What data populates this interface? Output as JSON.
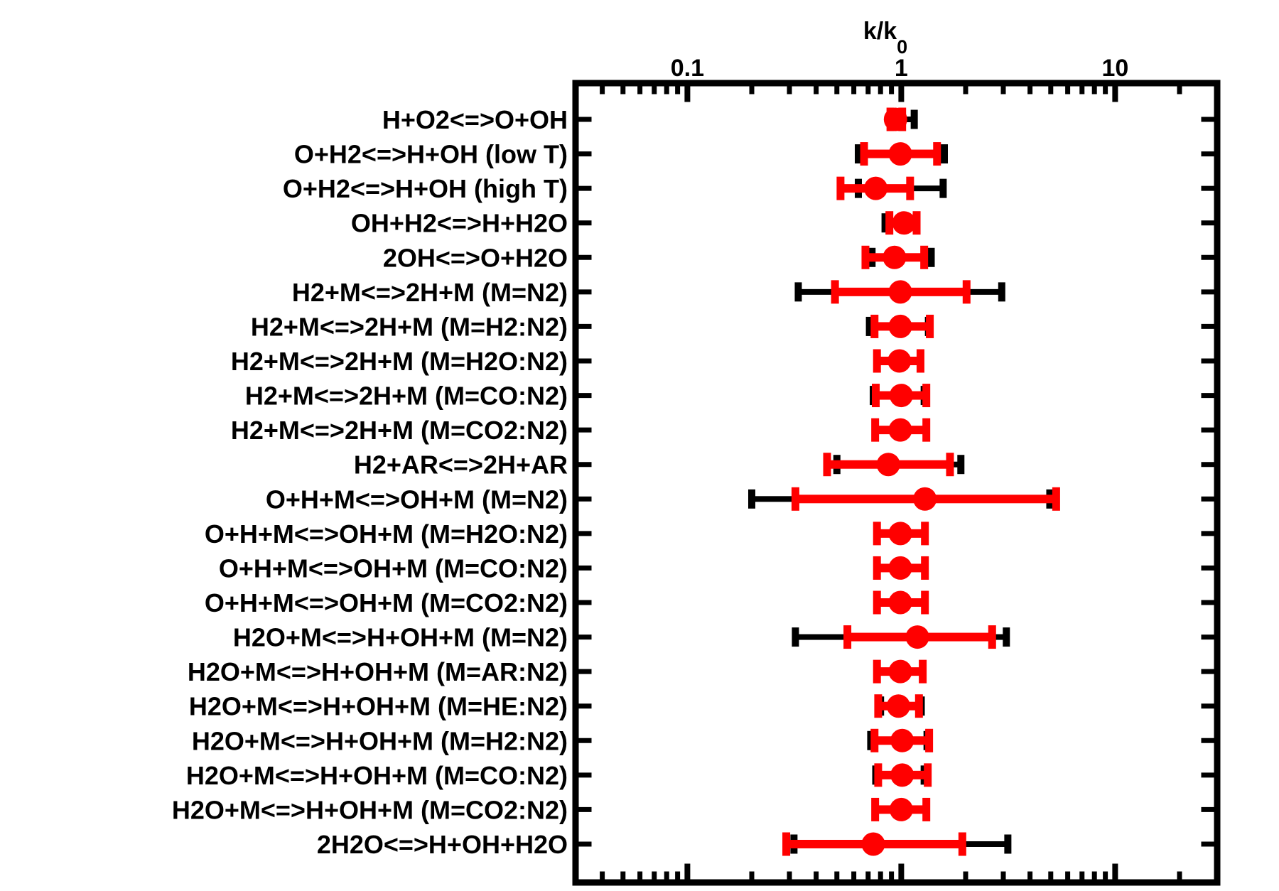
{
  "figure": {
    "background_color": "#FFFFFF",
    "foreground_color": "#000000",
    "accent_color": "#FF0000"
  },
  "chart_data": {
    "type": "scatter",
    "subtype": "horizontal_error_bar_forest_plot",
    "title": "k/k0",
    "xlabel_main": "k/k",
    "xlabel_sub": "0",
    "xlabel_position": "top",
    "x_scale": "log",
    "x_range": [
      0.03,
      30
    ],
    "grid": false,
    "legend_visible": false,
    "x_major_ticks": [
      {
        "value": 0.1,
        "label": "0.1"
      },
      {
        "value": 1,
        "label": "1"
      },
      {
        "value": 10,
        "label": "10"
      }
    ],
    "x_minor_ticks": [
      0.04,
      0.05,
      0.06,
      0.07,
      0.08,
      0.09,
      0.2,
      0.3,
      0.4,
      0.5,
      0.6,
      0.7,
      0.8,
      0.9,
      2,
      3,
      4,
      5,
      6,
      7,
      8,
      9,
      20
    ],
    "series": [
      {
        "name": "outer-interval",
        "color": "#000000",
        "style": "error bar with end caps"
      },
      {
        "name": "inner-interval",
        "color": "#FF0000",
        "style": "error bar with end caps and filled circle center marker"
      }
    ],
    "rows": [
      {
        "label": "H+O2<=>O+OH",
        "center": 0.94,
        "red": [
          0.89,
          1.01
        ],
        "black": [
          0.9,
          1.15
        ]
      },
      {
        "label": "O+H2<=>H+OH (low T)",
        "center": 0.99,
        "red": [
          0.67,
          1.47
        ],
        "black": [
          0.63,
          1.59
        ]
      },
      {
        "label": "O+H2<=>H+OH (high T)",
        "center": 0.76,
        "red": [
          0.52,
          1.1
        ],
        "black": [
          0.63,
          1.57
        ]
      },
      {
        "label": "OH+H2<=>H+H2O",
        "center": 1.03,
        "red": [
          0.88,
          1.18
        ],
        "black": [
          0.84,
          1.175
        ]
      },
      {
        "label": "2OH<=>O+H2O",
        "center": 0.93,
        "red": [
          0.68,
          1.28
        ],
        "black": [
          0.73,
          1.38
        ]
      },
      {
        "label": "H2+M<=>2H+M (M=N2)",
        "center": 0.99,
        "red": [
          0.49,
          2.02
        ],
        "black": [
          0.33,
          2.95
        ]
      },
      {
        "label": "H2+M<=>2H+M (M=H2:N2)",
        "center": 0.99,
        "red": [
          0.75,
          1.36
        ],
        "black": [
          0.71,
          1.34
        ]
      },
      {
        "label": "H2+M<=>2H+M (M=H2O:N2)",
        "center": 0.98,
        "red": [
          0.77,
          1.23
        ],
        "black": [
          0.77,
          1.23
        ]
      },
      {
        "label": "H2+M<=>2H+M (M=CO:N2)",
        "center": 1.0,
        "red": [
          0.76,
          1.31
        ],
        "black": [
          0.74,
          1.28
        ]
      },
      {
        "label": "H2+M<=>2H+M (M=CO2:N2)",
        "center": 0.99,
        "red": [
          0.755,
          1.31
        ],
        "black": [
          0.755,
          1.31
        ]
      },
      {
        "label": "H2+AR<=>2H+AR",
        "center": 0.87,
        "red": [
          0.45,
          1.69
        ],
        "black": [
          0.5,
          1.9
        ]
      },
      {
        "label": "O+H+M<=>OH+M (M=N2)",
        "center": 1.29,
        "red": [
          0.32,
          5.3
        ],
        "black": [
          0.2,
          4.95
        ]
      },
      {
        "label": "O+H+M<=>OH+M (M=H2O:N2)",
        "center": 0.99,
        "red": [
          0.77,
          1.29
        ],
        "black": [
          0.77,
          1.29
        ]
      },
      {
        "label": "O+H+M<=>OH+M (M=CO:N2)",
        "center": 0.99,
        "red": [
          0.77,
          1.29
        ],
        "black": [
          0.77,
          1.29
        ]
      },
      {
        "label": "O+H+M<=>OH+M (M=CO2:N2)",
        "center": 0.99,
        "red": [
          0.77,
          1.29
        ],
        "black": [
          0.77,
          1.29
        ]
      },
      {
        "label": "H2O+M<=>H+OH+M (M=N2)",
        "center": 1.19,
        "red": [
          0.56,
          2.66
        ],
        "black": [
          0.32,
          3.1
        ]
      },
      {
        "label": "H2O+M<=>H+OH+M (M=AR:N2)",
        "center": 0.99,
        "red": [
          0.77,
          1.26
        ],
        "black": [
          0.77,
          1.26
        ]
      },
      {
        "label": "H2O+M<=>H+OH+M (M=HE:N2)",
        "center": 0.97,
        "red": [
          0.78,
          1.21
        ],
        "black": [
          0.8,
          1.24
        ]
      },
      {
        "label": "H2O+M<=>H+OH+M (M=H2:N2)",
        "center": 1.01,
        "red": [
          0.75,
          1.35
        ],
        "black": [
          0.72,
          1.32
        ]
      },
      {
        "label": "H2O+M<=>H+OH+M (M=CO:N2)",
        "center": 1.01,
        "red": [
          0.78,
          1.33
        ],
        "black": [
          0.76,
          1.28
        ]
      },
      {
        "label": "H2O+M<=>H+OH+M (M=CO2:N2)",
        "center": 1.0,
        "red": [
          0.755,
          1.31
        ],
        "black": [
          0.755,
          1.31
        ]
      },
      {
        "label": "2H2O<=>H+OH+H2O",
        "center": 0.74,
        "red": [
          0.29,
          1.93
        ],
        "black": [
          0.315,
          3.15
        ]
      }
    ]
  }
}
